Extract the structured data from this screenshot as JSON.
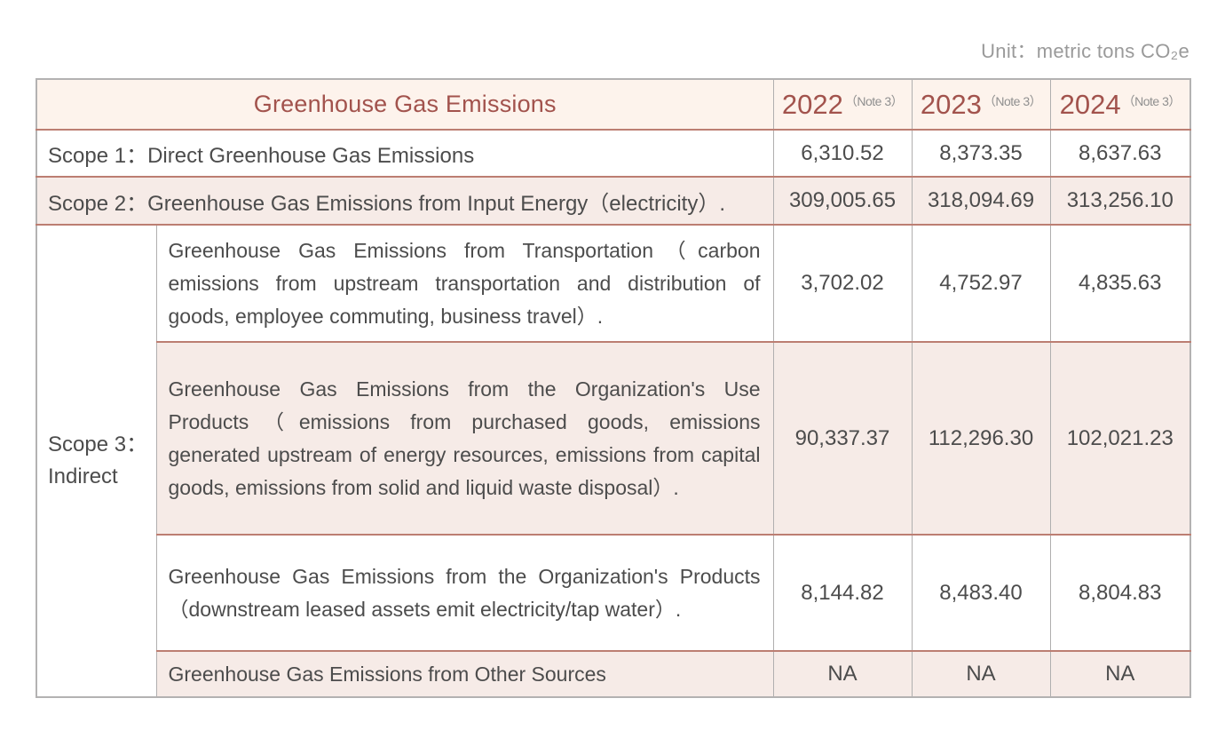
{
  "page": {
    "unit_label": "Unit：metric tons CO₂e"
  },
  "table": {
    "header": {
      "title": "Greenhouse Gas Emissions",
      "years": [
        {
          "year": "2022",
          "note": "（Note 3）"
        },
        {
          "year": "2023",
          "note": "（Note 3）"
        },
        {
          "year": "2024",
          "note": "（Note 3）"
        }
      ]
    },
    "scope1": {
      "label": "Scope 1：Direct Greenhouse Gas Emissions",
      "values": [
        "6,310.52",
        "8,373.35",
        "8,637.63"
      ]
    },
    "scope2": {
      "label": "Scope 2：Greenhouse Gas Emissions from Input Energy（electricity）.",
      "values": [
        "309,005.65",
        "318,094.69",
        "313,256.10"
      ]
    },
    "scope3": {
      "label_lines": [
        "Scope 3：",
        "Indirect"
      ],
      "subrows": [
        {
          "description": "Greenhouse Gas Emissions from Transportation（carbon emissions from upstream transportation and distribution of goods, employee commuting, business travel）.",
          "values": [
            "3,702.02",
            "4,752.97",
            "4,835.63"
          ]
        },
        {
          "description": "Greenhouse Gas Emissions from the Organization's Use Products（emissions from purchased goods, emissions generated upstream of energy resources, emissions from capital goods, emissions from solid and liquid waste disposal）.",
          "values": [
            "90,337.37",
            "112,296.30",
            "102,021.23"
          ]
        },
        {
          "description": "Greenhouse Gas Emissions from the Organization's Products（downstream leased assets emit electricity/tap water）.",
          "values": [
            "8,144.82",
            "8,483.40",
            "8,804.83"
          ]
        },
        {
          "description": "Greenhouse Gas Emissions from Other Sources",
          "values": [
            "NA",
            "NA",
            "NA"
          ]
        }
      ]
    },
    "colors": {
      "accent_red": "#a2534d",
      "rose_line": "#bc7e72",
      "cream_header_bg": "#fdf3ec",
      "pink_row_bg": "#f6ebe7",
      "gray_border": "#b3b2b2",
      "body_text": "#4c4c4c",
      "muted_text": "#8f8f8f"
    }
  }
}
